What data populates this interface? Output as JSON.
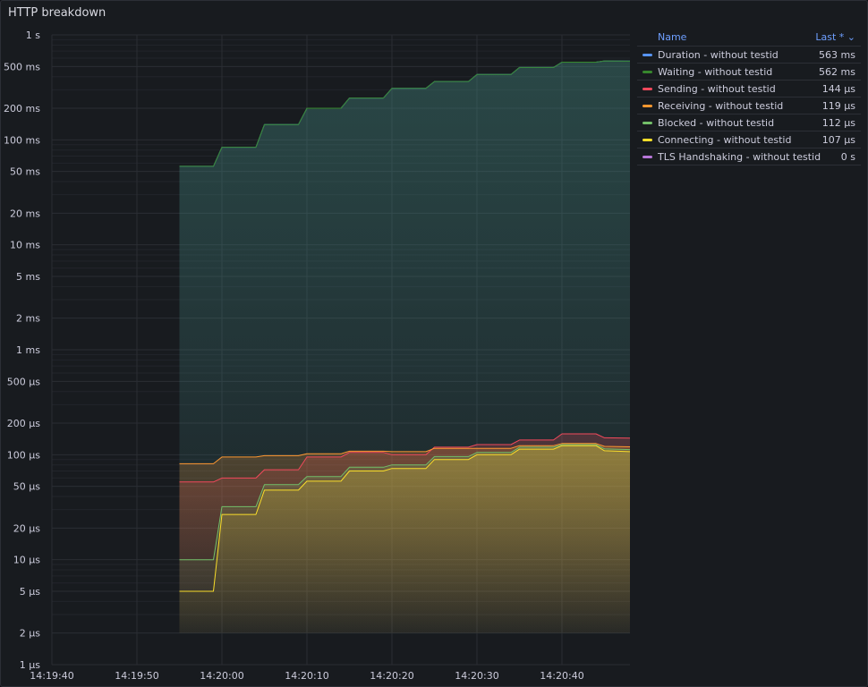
{
  "panel": {
    "title": "HTTP breakdown"
  },
  "legend": {
    "name_header": "Name",
    "last_header": "Last * ⌄",
    "rows": [
      {
        "name": "Duration - without testid",
        "last": "563 ms",
        "color": "#5794f2"
      },
      {
        "name": "Waiting - without testid",
        "last": "562 ms",
        "color": "#37872d"
      },
      {
        "name": "Sending - without testid",
        "last": "144 µs",
        "color": "#f2495c"
      },
      {
        "name": "Receiving - without testid",
        "last": "119 µs",
        "color": "#ff9830"
      },
      {
        "name": "Blocked - without testid",
        "last": "112 µs",
        "color": "#73bf69"
      },
      {
        "name": "Connecting - without testid",
        "last": "107 µs",
        "color": "#fade2a"
      },
      {
        "name": "TLS Handshaking - without testid",
        "last": "0 s",
        "color": "#b877d9"
      }
    ]
  },
  "chart_data": {
    "type": "line",
    "scale": "log",
    "ylim_seconds": [
      1e-06,
      1
    ],
    "y_ticks": [
      {
        "v": 1,
        "label": "1 s"
      },
      {
        "v": 0.5,
        "label": "500 ms"
      },
      {
        "v": 0.2,
        "label": "200 ms"
      },
      {
        "v": 0.1,
        "label": "100 ms"
      },
      {
        "v": 0.05,
        "label": "50 ms"
      },
      {
        "v": 0.02,
        "label": "20 ms"
      },
      {
        "v": 0.01,
        "label": "10 ms"
      },
      {
        "v": 0.005,
        "label": "5 ms"
      },
      {
        "v": 0.002,
        "label": "2 ms"
      },
      {
        "v": 0.001,
        "label": "1 ms"
      },
      {
        "v": 0.0005,
        "label": "500 µs"
      },
      {
        "v": 0.0002,
        "label": "200 µs"
      },
      {
        "v": 0.0001,
        "label": "100 µs"
      },
      {
        "v": 5e-05,
        "label": "50 µs"
      },
      {
        "v": 2e-05,
        "label": "20 µs"
      },
      {
        "v": 1e-05,
        "label": "10 µs"
      },
      {
        "v": 5e-06,
        "label": "5 µs"
      },
      {
        "v": 2e-06,
        "label": "2 µs"
      },
      {
        "v": 1e-06,
        "label": "1 µs"
      }
    ],
    "x_range": [
      "14:19:40",
      "14:20:48"
    ],
    "x_ticks": [
      "14:19:40",
      "14:19:50",
      "14:20:00",
      "14:20:10",
      "14:20:20",
      "14:20:30",
      "14:20:40"
    ],
    "x": [
      "14:19:55",
      "14:19:59",
      "14:20:00",
      "14:20:04",
      "14:20:05",
      "14:20:09",
      "14:20:10",
      "14:20:14",
      "14:20:15",
      "14:20:19",
      "14:20:20",
      "14:20:24",
      "14:20:25",
      "14:20:29",
      "14:20:30",
      "14:20:34",
      "14:20:35",
      "14:20:39",
      "14:20:40",
      "14:20:44",
      "14:20:45",
      "14:20:48"
    ],
    "series": [
      {
        "name": "Duration - without testid",
        "color": "#5794f2",
        "values": [
          0.056,
          0.056,
          0.085,
          0.085,
          0.14,
          0.14,
          0.2,
          0.2,
          0.25,
          0.25,
          0.31,
          0.31,
          0.36,
          0.36,
          0.42,
          0.42,
          0.49,
          0.49,
          0.55,
          0.55,
          0.565,
          0.563
        ]
      },
      {
        "name": "Waiting - without testid",
        "color": "#37872d",
        "values": [
          0.056,
          0.056,
          0.085,
          0.085,
          0.14,
          0.14,
          0.2,
          0.2,
          0.25,
          0.25,
          0.31,
          0.31,
          0.36,
          0.36,
          0.42,
          0.42,
          0.49,
          0.49,
          0.55,
          0.55,
          0.565,
          0.562
        ]
      },
      {
        "name": "Sending - without testid",
        "color": "#f2495c",
        "values": [
          5.5e-05,
          5.5e-05,
          6e-05,
          6e-05,
          7.2e-05,
          7.2e-05,
          9.5e-05,
          9.5e-05,
          0.000105,
          0.000105,
          0.0001,
          0.0001,
          0.000118,
          0.000118,
          0.000125,
          0.000125,
          0.000138,
          0.000138,
          0.000158,
          0.000158,
          0.000145,
          0.000144
        ]
      },
      {
        "name": "Receiving - without testid",
        "color": "#ff9830",
        "values": [
          8.2e-05,
          8.2e-05,
          9.5e-05,
          9.5e-05,
          9.8e-05,
          9.8e-05,
          0.000102,
          0.000102,
          0.000108,
          0.000108,
          0.000107,
          0.000107,
          0.000115,
          0.000115,
          0.000115,
          0.000115,
          0.000122,
          0.000122,
          0.000128,
          0.000128,
          0.00012,
          0.000119
        ]
      },
      {
        "name": "Blocked - without testid",
        "color": "#73bf69",
        "values": [
          1e-05,
          1e-05,
          3.2e-05,
          3.2e-05,
          5.2e-05,
          5.2e-05,
          6.2e-05,
          6.2e-05,
          7.6e-05,
          7.6e-05,
          8e-05,
          8e-05,
          9.6e-05,
          9.6e-05,
          0.000105,
          0.000105,
          0.000118,
          0.000118,
          0.000125,
          0.000125,
          0.000114,
          0.000112
        ]
      },
      {
        "name": "Connecting - without testid",
        "color": "#fade2a",
        "values": [
          5e-06,
          5e-06,
          2.7e-05,
          2.7e-05,
          4.6e-05,
          4.6e-05,
          5.6e-05,
          5.6e-05,
          7e-05,
          7e-05,
          7.4e-05,
          7.4e-05,
          9e-05,
          9e-05,
          0.0001,
          0.0001,
          0.000113,
          0.000113,
          0.000122,
          0.000122,
          0.000109,
          0.000107
        ]
      }
    ]
  }
}
